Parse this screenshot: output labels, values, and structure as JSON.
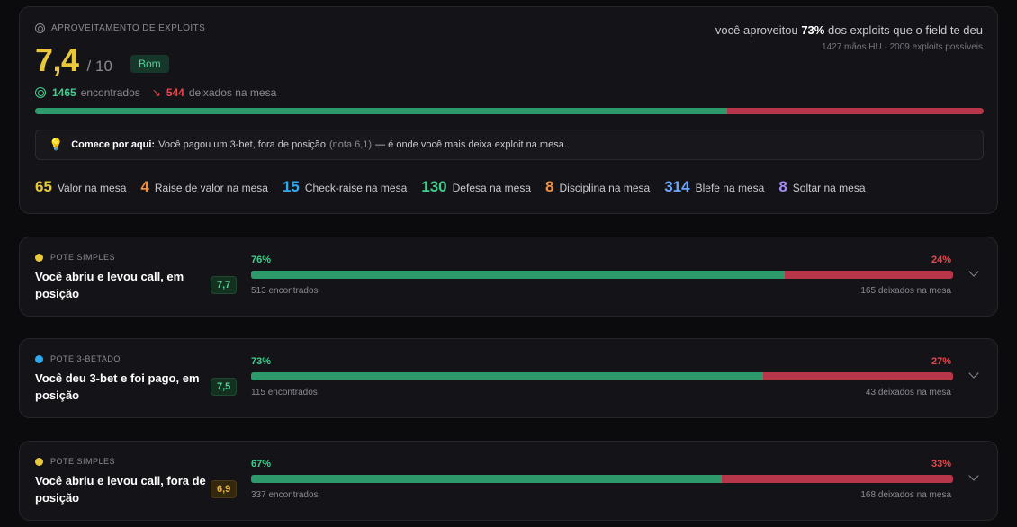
{
  "summary": {
    "label": "APROVEITAMENTO DE EXPLOITS",
    "score": "7,4",
    "score_max": "/ 10",
    "rating": "Bom",
    "headline_prefix": "você aproveitou",
    "headline_pct": "73%",
    "headline_suffix": "dos exploits que o field te deu",
    "subline": "1427 mãos HU · 2009 exploits possíveis",
    "found_count": "1465",
    "found_label": "encontrados",
    "left_count": "544",
    "left_label": "deixados na mesa",
    "captured_fraction": 0.73,
    "tip_strong": "Comece por aqui:",
    "tip_text": "Você pagou um 3-bet, fora de posição",
    "tip_note": "(nota 6,1)",
    "tip_end": "— é onde você mais deixa exploit na mesa."
  },
  "categories": [
    {
      "value": "65",
      "label": "Valor na mesa",
      "color": "#e9c93a"
    },
    {
      "value": "4",
      "label": "Raise de valor na mesa",
      "color": "#f2913d"
    },
    {
      "value": "15",
      "label": "Check-raise na mesa",
      "color": "#2eaaf0"
    },
    {
      "value": "130",
      "label": "Defesa na mesa",
      "color": "#3ecf8e"
    },
    {
      "value": "8",
      "label": "Disciplina na mesa",
      "color": "#f2913d"
    },
    {
      "value": "314",
      "label": "Blefe na mesa",
      "color": "#6aa8ff"
    },
    {
      "value": "8",
      "label": "Soltar na mesa",
      "color": "#a78bfa"
    }
  ],
  "spots": [
    {
      "type": "POTE SIMPLES",
      "dot_color": "#e9c93a",
      "title": "Você abriu e levou call, em posição",
      "score": "7,7",
      "score_level": "good",
      "pct_found": "76%",
      "pct_left": "24%",
      "fill": 0.76,
      "found": "513 encontrados",
      "left": "165 deixados na mesa"
    },
    {
      "type": "POTE 3-BETADO",
      "dot_color": "#2eaaf0",
      "title": "Você deu 3-bet e foi pago, em posição",
      "score": "7,5",
      "score_level": "good",
      "pct_found": "73%",
      "pct_left": "27%",
      "fill": 0.73,
      "found": "115 encontrados",
      "left": "43 deixados na mesa"
    },
    {
      "type": "POTE SIMPLES",
      "dot_color": "#e9c93a",
      "title": "Você abriu e levou call, fora de posição",
      "score": "6,9",
      "score_level": "warn",
      "pct_found": "67%",
      "pct_left": "33%",
      "fill": 0.67,
      "found": "337 encontrados",
      "left": "168 deixados na mesa"
    }
  ]
}
